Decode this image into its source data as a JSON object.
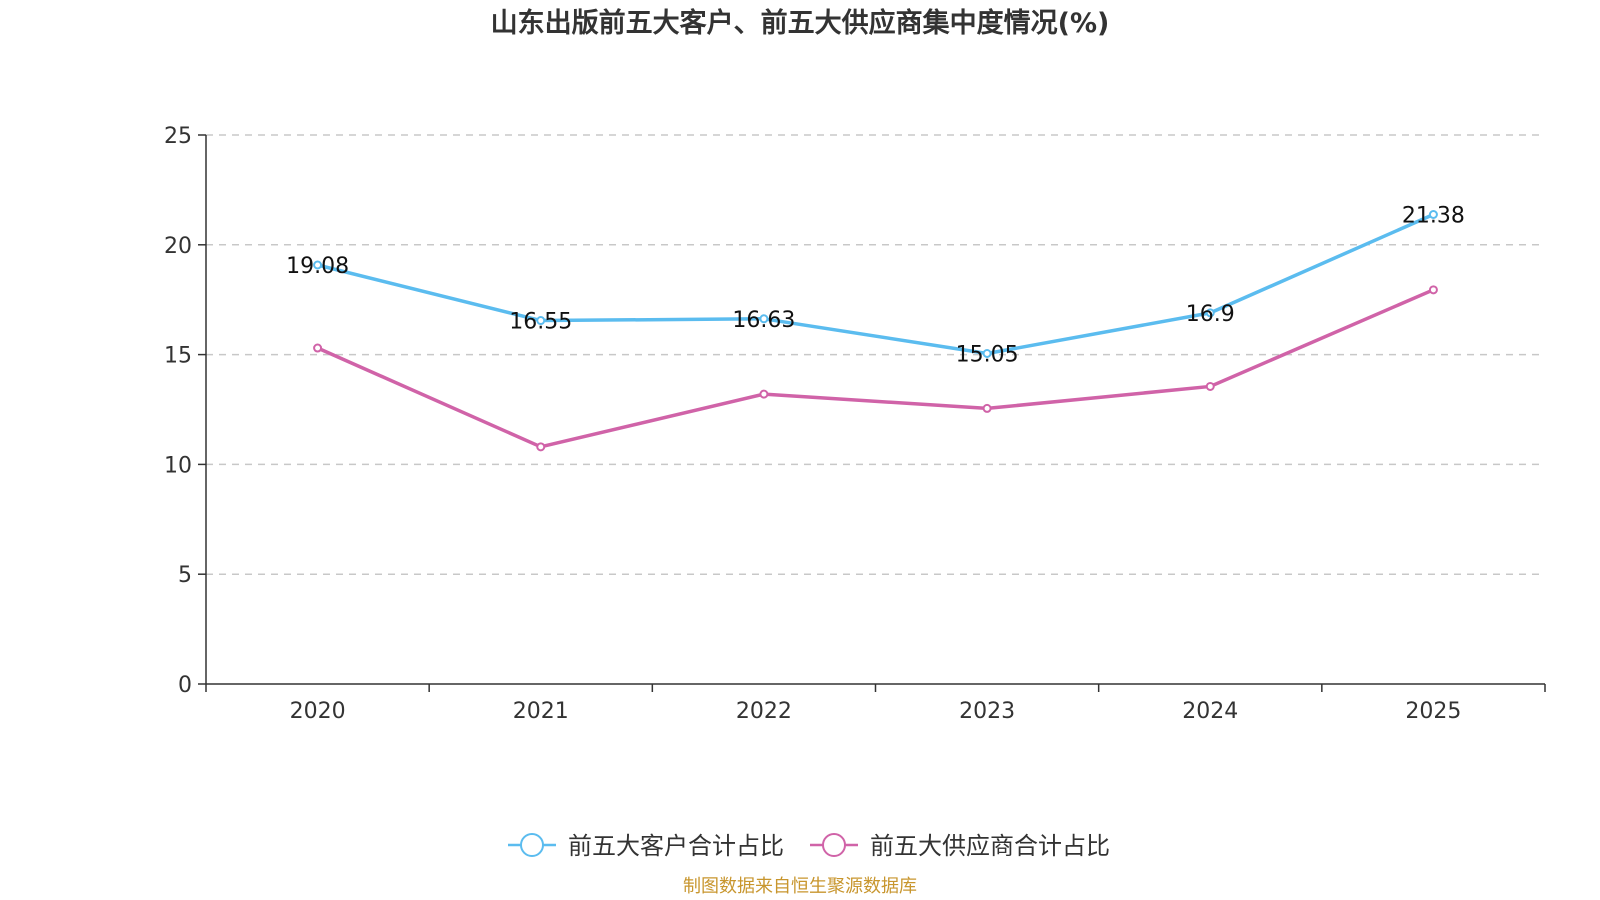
{
  "chart_data": {
    "type": "line",
    "title": "山东出版前五大客户、前五大供应商集中度情况(%)",
    "categories": [
      "2020",
      "2021",
      "2022",
      "2023",
      "2024",
      "2025"
    ],
    "ylim": [
      0,
      25
    ],
    "yticks": [
      "0",
      "5",
      "10",
      "15",
      "20",
      "25"
    ],
    "grid": true,
    "legend_position": "bottom-center",
    "series": [
      {
        "name": "前五大客户合计占比",
        "color": "#5bbcef",
        "values": [
          19.08,
          16.55,
          16.63,
          15.05,
          16.9,
          21.38
        ],
        "labels": [
          "19.08",
          "16.55",
          "16.63",
          "15.05",
          "16.9",
          "21.38"
        ]
      },
      {
        "name": "前五大供应商合计占比",
        "color": "#d063a8",
        "values": [
          15.3,
          10.8,
          13.2,
          12.55,
          13.55,
          17.95
        ],
        "labels": []
      }
    ]
  },
  "footer": {
    "source": "制图数据来自恒生聚源数据库"
  }
}
